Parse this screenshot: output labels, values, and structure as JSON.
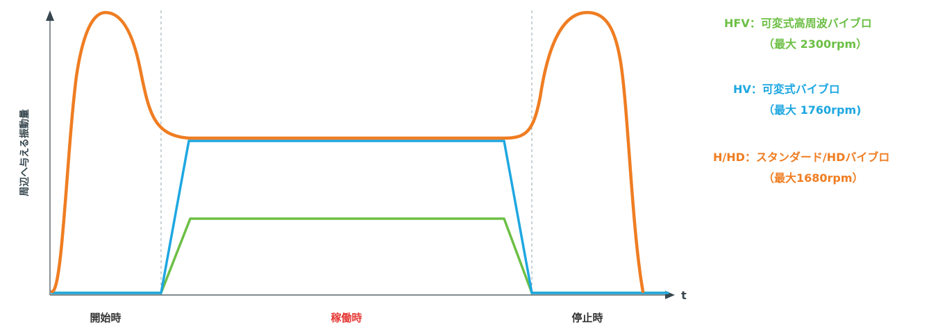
{
  "chart_data": {
    "type": "line",
    "ylabel": "周辺へ与える振動量",
    "xlabel": "t",
    "phases": [
      {
        "label": "開始時",
        "color": "#333333"
      },
      {
        "label": "稼働時",
        "color": "#e53935"
      },
      {
        "label": "停止時",
        "color": "#333333"
      }
    ],
    "series": [
      {
        "name": "HFV",
        "color": "#6cbf45",
        "legend_line1": "HFV：可変式高周波バイブロ",
        "legend_line2": "（最大 2300rpm）"
      },
      {
        "name": "HV",
        "color": "#1ea7e1",
        "legend_line1": "HV：可変式バイブロ",
        "legend_line2": "（最大 1760rpm)"
      },
      {
        "name": "H/HD",
        "color": "#ef7d22",
        "legend_line1": "H/HD：スタンダード/HDバイブロ",
        "legend_line2": "（最大1680rpm）"
      }
    ],
    "grid": false,
    "legend_placement": "right"
  }
}
